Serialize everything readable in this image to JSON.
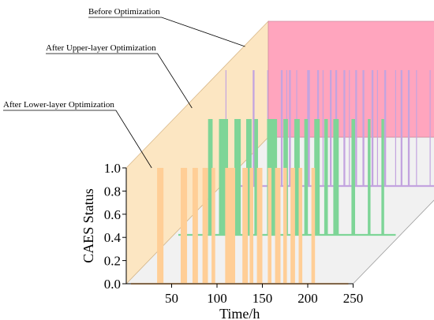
{
  "chart_data": {
    "type": "area",
    "chart_kind": "3d-stacked-step-area",
    "xlabel": "Time/h",
    "ylabel": "CAES Status",
    "x_ticks": [
      50,
      100,
      150,
      200,
      250
    ],
    "y_ticks": [
      "0.0",
      "0.2",
      "0.4",
      "0.6",
      "0.8",
      "1.0"
    ],
    "xlim": [
      0,
      250
    ],
    "ylim": [
      0,
      1.0
    ],
    "series": [
      {
        "name": "After Lower-layer Optimization",
        "color": "#FFCE96",
        "wall_color": "#FCE6C2",
        "depth": 0,
        "on_intervals": [
          [
            34,
            41
          ],
          [
            60,
            67
          ],
          [
            73,
            79
          ],
          [
            84,
            90
          ],
          [
            94,
            98
          ],
          [
            109,
            120
          ],
          [
            128,
            134
          ],
          [
            136,
            140
          ],
          [
            144,
            150
          ],
          [
            156,
            160
          ],
          [
            164,
            170
          ],
          [
            173,
            177
          ],
          [
            181,
            186
          ],
          [
            190,
            194
          ],
          [
            204,
            208
          ]
        ]
      },
      {
        "name": "After Upper-layer Optimization",
        "color": "#7ED597",
        "depth": 1,
        "on_intervals": [
          [
            38,
            43
          ],
          [
            50,
            60
          ],
          [
            67,
            74
          ],
          [
            80,
            86
          ],
          [
            89,
            93
          ],
          [
            103,
            114
          ],
          [
            121,
            126
          ],
          [
            133,
            139
          ],
          [
            144,
            148
          ],
          [
            155,
            161
          ],
          [
            166,
            170
          ],
          [
            176,
            182
          ],
          [
            196,
            200
          ],
          [
            214,
            217
          ],
          [
            229,
            232
          ]
        ]
      },
      {
        "name": "Before Optimization",
        "color": "#C3A4DF",
        "wall_color": "#FFA5BE",
        "depth": 2,
        "on_intervals": [
          [
            5,
            6
          ],
          [
            35,
            37
          ],
          [
            51,
            52
          ],
          [
            66,
            68
          ],
          [
            72,
            73
          ],
          [
            75,
            77
          ],
          [
            83,
            84
          ],
          [
            95,
            98
          ],
          [
            106,
            108
          ],
          [
            112,
            113
          ],
          [
            120,
            122
          ],
          [
            126,
            128
          ],
          [
            135,
            137
          ],
          [
            141,
            142
          ],
          [
            148,
            150
          ],
          [
            156,
            158
          ],
          [
            166,
            168
          ],
          [
            172,
            173
          ],
          [
            180,
            182
          ],
          [
            192,
            193
          ],
          [
            198,
            200
          ],
          [
            206,
            208
          ],
          [
            215,
            216
          ],
          [
            230,
            231
          ],
          [
            241,
            242
          ]
        ]
      }
    ]
  }
}
